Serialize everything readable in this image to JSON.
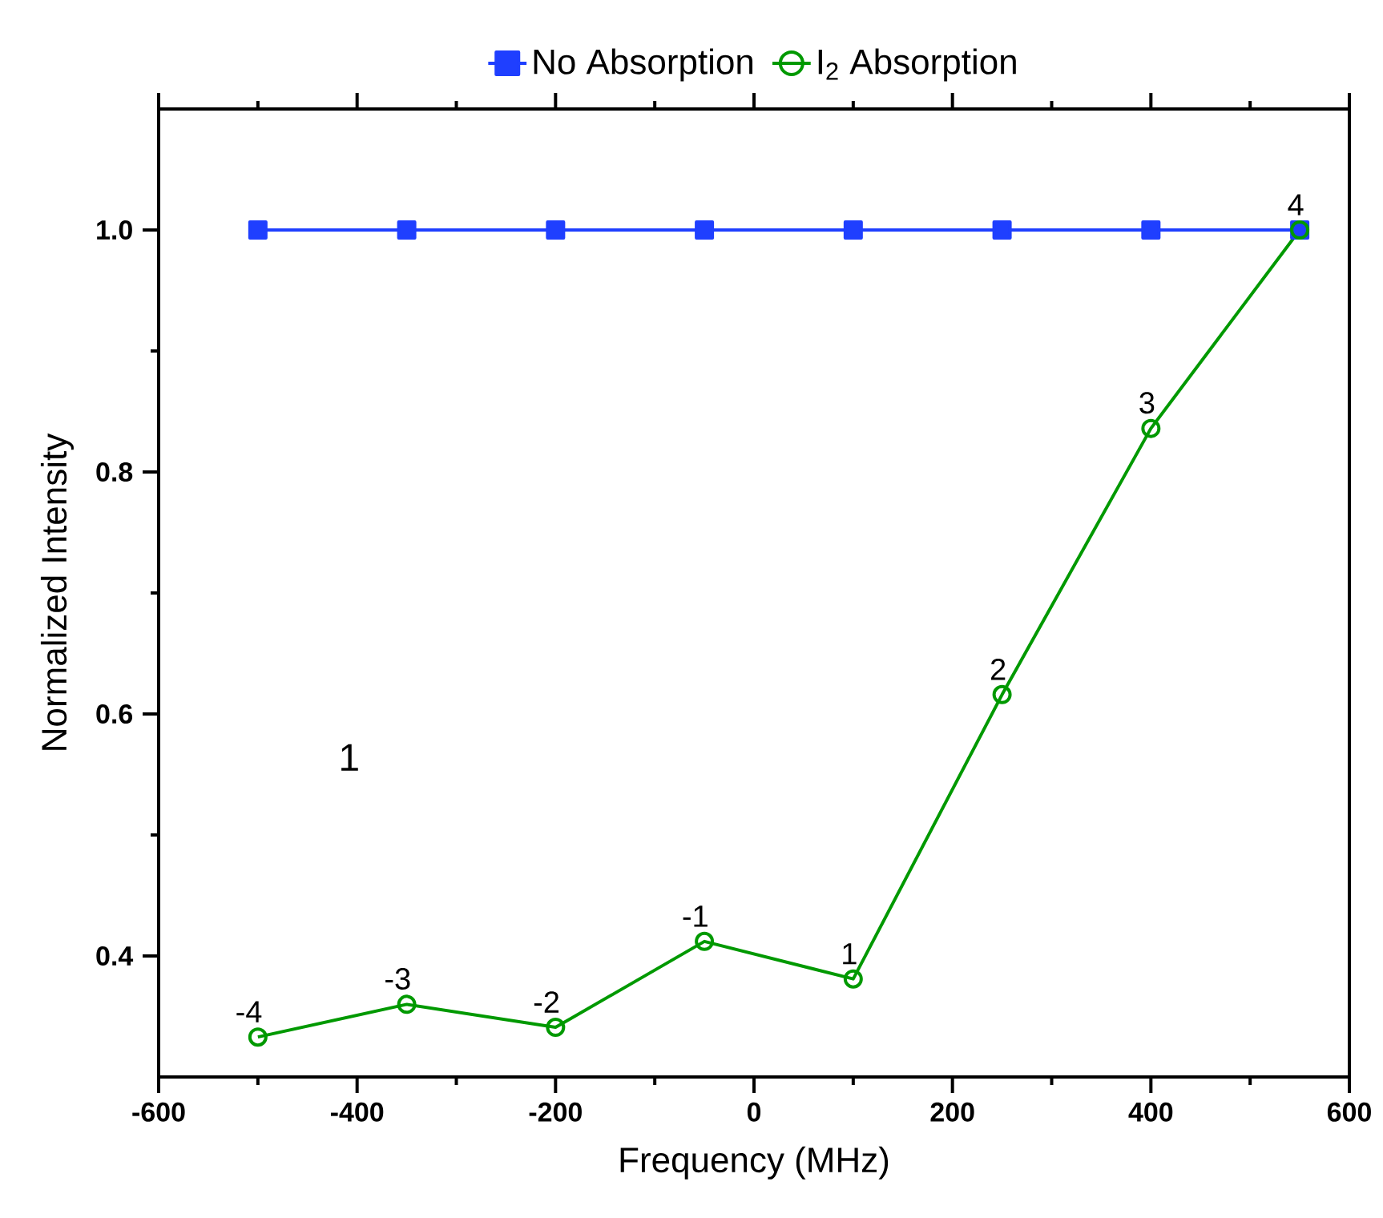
{
  "chart_data": {
    "type": "line",
    "xlabel": "Frequency (MHz)",
    "ylabel": "Normalized Intensity",
    "x": [
      -500,
      -350,
      -200,
      -50,
      100,
      250,
      400,
      550
    ],
    "series": [
      {
        "name": "No Absorption",
        "color": "#1f3fff",
        "marker": "square",
        "values": [
          1.0,
          1.0,
          1.0,
          1.0,
          1.0,
          1.0,
          1.0,
          1.0
        ]
      },
      {
        "name": "I$_{2}$ Absorption",
        "color": "#009900",
        "marker": "circle",
        "values": [
          0.333,
          0.36,
          0.341,
          0.412,
          0.381,
          0.616,
          0.836,
          1.0
        ]
      }
    ],
    "xlim": [
      -600,
      600
    ],
    "xticks": [
      -600,
      -400,
      -200,
      0,
      200,
      400,
      600
    ],
    "ylim": [
      0.3,
      1.1
    ],
    "yticks": [
      0.4,
      0.6,
      0.8,
      {
        "value": 1.0,
        "label": "1.0"
      }
    ],
    "annotations": [
      "1",
      {
        "text": "-4",
        "x": -500,
        "y": 0.333
      },
      {
        "text": "-3",
        "x": -350,
        "y": 0.36
      },
      {
        "text": "-2",
        "x": -200,
        "y": 0.341
      },
      {
        "text": "-1",
        "x": -50,
        "y": 0.412
      },
      {
        "text": "1",
        "x": 100,
        "y": 0.381
      },
      {
        "text": "2",
        "x": 250,
        "y": 0.616
      },
      {
        "text": "3",
        "x": 400,
        "y": 0.836
      },
      {
        "text": "4",
        "x": 550,
        "y": 1.0
      }
    ],
    "legend": "top",
    "grid": false,
    "line_style": "solid"
  }
}
